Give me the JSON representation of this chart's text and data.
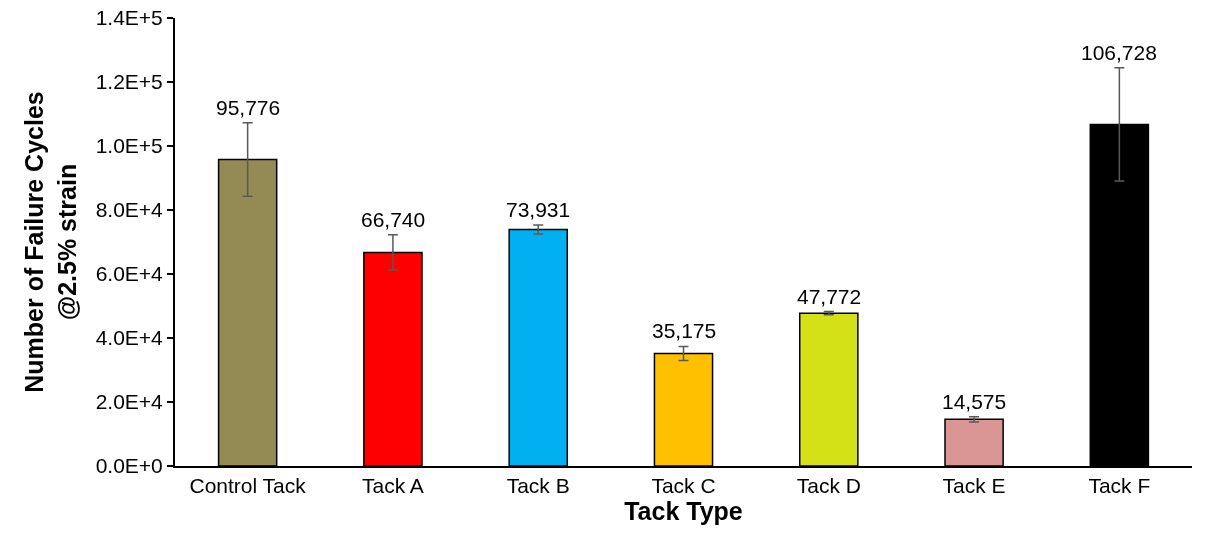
{
  "chart_data": {
    "type": "bar",
    "xlabel": "Tack Type",
    "ylabel": "Number of Failure Cycles\n@2.5% strain",
    "categories": [
      "Control Tack",
      "Tack A",
      "Tack B",
      "Tack C",
      "Tack D",
      "Tack E",
      "Tack F"
    ],
    "values": [
      95776,
      66740,
      73931,
      35175,
      47772,
      14575,
      106728
    ],
    "colors": [
      "#948a54",
      "#ff0000",
      "#00b0f0",
      "#ffc000",
      "#d4e116",
      "#da9694",
      "#000000"
    ],
    "errors": [
      11500,
      5500,
      1400,
      2200,
      500,
      800,
      17700
    ],
    "ylim": [
      0,
      140000
    ],
    "yticks": [
      {
        "value": 0,
        "label": "0.0E+0"
      },
      {
        "value": 20000,
        "label": "2.0E+4"
      },
      {
        "value": 40000,
        "label": "4.0E+4"
      },
      {
        "value": 60000,
        "label": "6.0E+4"
      },
      {
        "value": 80000,
        "label": "8.0E+4"
      },
      {
        "value": 100000,
        "label": "1.0E+5"
      },
      {
        "value": 120000,
        "label": "1.2E+5"
      },
      {
        "value": 140000,
        "label": "1.4E+5"
      }
    ],
    "value_labels": [
      "95,776",
      "66,740",
      "73,931",
      "35,175",
      "47,772",
      "14,575",
      "106,728"
    ],
    "grid": false
  }
}
